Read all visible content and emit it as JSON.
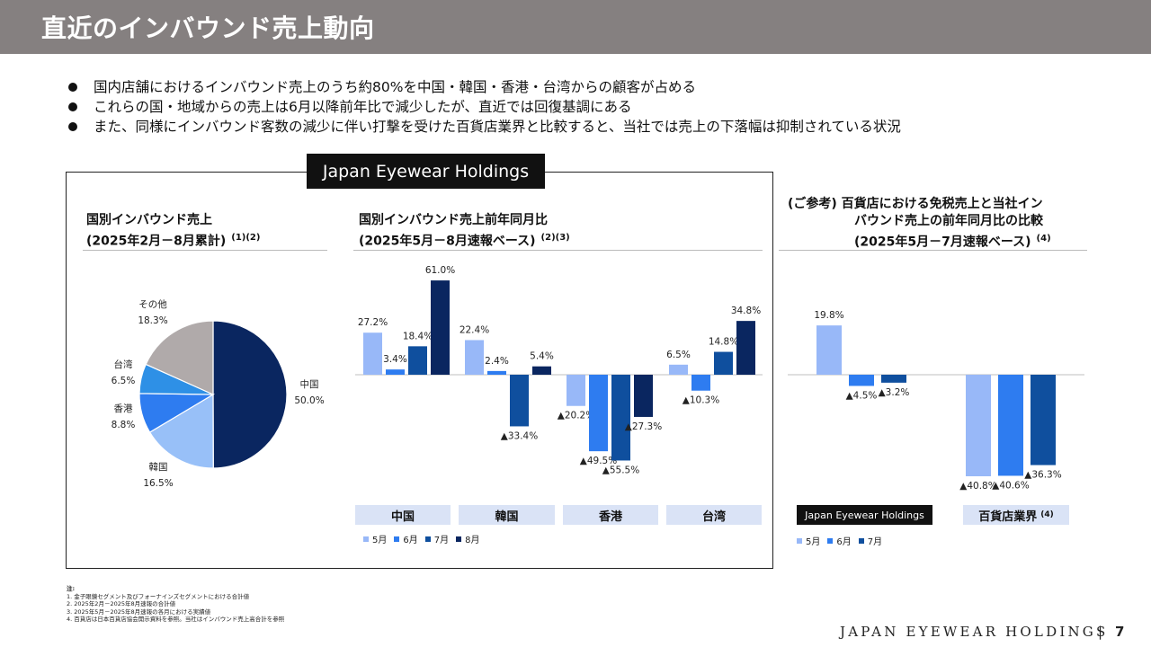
{
  "header": {
    "title": "直近のインバウンド売上動向"
  },
  "bullets": [
    "国内店舗におけるインバウンド売上のうち約80%を中国・韓国・香港・台湾からの顧客が占める",
    "これらの国・地域からの売上は6月以降前年比で減少したが、直近では回復基調にある",
    "また、同様にインバウンド客数の減少に伴い打撃を受けた百貨店業界と比較すると、当社では売上の下落幅は抑制されている状況"
  ],
  "logo_tab": "Japan Eyewear Holdings",
  "pie": {
    "title_line1": "国別インバウンド売上",
    "title_line2": "(2025年2月－8月累計)",
    "note": "(1)(2)"
  },
  "bar_mid": {
    "title_line1": "国別インバウンド売上前年同月比",
    "title_line2": "(2025年5月－8月速報ベース)",
    "note": "(2)(3)"
  },
  "bar_right": {
    "title_line1": "(ご参考) 百貨店における免税売上と当社イン",
    "title_line2": "バウンド売上の前年同月比の比較",
    "title_line3": "(2025年5月－7月速報ベース)",
    "note": "(4)",
    "badge": "Japan Eyewear Holdings",
    "dept_label": "百貨店業界",
    "dept_note": "(4)"
  },
  "chart_data": [
    {
      "type": "pie",
      "categories": [
        "中国",
        "韓国",
        "香港",
        "台湾",
        "その他"
      ],
      "values": [
        50.0,
        16.5,
        8.8,
        6.5,
        18.3
      ],
      "value_labels": [
        "50.0%",
        "16.5%",
        "8.8%",
        "6.5%",
        "18.3%"
      ],
      "colors": [
        "#0a2660",
        "#98c0f8",
        "#2e7cf0",
        "#2e90e6",
        "#b0aaaa"
      ]
    },
    {
      "type": "bar",
      "categories": [
        "中国",
        "韓国",
        "香港",
        "台湾"
      ],
      "series": [
        {
          "name": "5月",
          "values": [
            27.2,
            22.4,
            -20.2,
            6.5
          ],
          "labels": [
            "27.2%",
            "22.4%",
            "▲20.2%",
            "6.5%"
          ]
        },
        {
          "name": "6月",
          "values": [
            3.4,
            2.4,
            -49.5,
            -10.3
          ],
          "labels": [
            "3.4%",
            "2.4%",
            "▲49.5%",
            "▲10.3%"
          ]
        },
        {
          "name": "7月",
          "values": [
            18.4,
            -33.4,
            -55.5,
            14.8
          ],
          "labels": [
            "18.4%",
            "▲33.4%",
            "▲55.5%",
            "14.8%"
          ]
        },
        {
          "name": "8月",
          "values": [
            61.0,
            5.4,
            -27.3,
            34.8
          ],
          "labels": [
            "61.0%",
            "5.4%",
            "▲27.3%",
            "34.8%"
          ]
        }
      ],
      "colors": [
        "#98b8f8",
        "#2e7cf0",
        "#0f4f9e",
        "#0a2660"
      ]
    },
    {
      "type": "bar",
      "categories": [
        "Japan Eyewear Holdings",
        "百貨店業界"
      ],
      "series": [
        {
          "name": "5月",
          "values": [
            19.8,
            -40.8
          ],
          "labels": [
            "19.8%",
            "▲40.8%"
          ]
        },
        {
          "name": "6月",
          "values": [
            -4.5,
            -40.6
          ],
          "labels": [
            "▲4.5%",
            "▲40.6%"
          ]
        },
        {
          "name": "7月",
          "values": [
            -3.2,
            -36.3
          ],
          "labels": [
            "▲3.2%",
            "▲36.3%"
          ]
        }
      ],
      "colors": [
        "#98b8f8",
        "#2e7cf0",
        "#0f4f9e"
      ]
    }
  ],
  "notes": {
    "heading": "注:",
    "items": [
      "1. 金子眼鏡セグメント及びフォーナインズセグメントにおける合計値",
      "2. 2025年2月－2025年8月速報の合計値",
      "3. 2025年5月－2025年8月速報の各月における実績値",
      "4. 百貨店は日本百貨店協会開示資料を参照。当社はインバウンド売上高合計を参照"
    ]
  },
  "footer": {
    "brand": "JAPAN EYEWEAR HOLDINGS",
    "separator": "|",
    "page": "7"
  }
}
